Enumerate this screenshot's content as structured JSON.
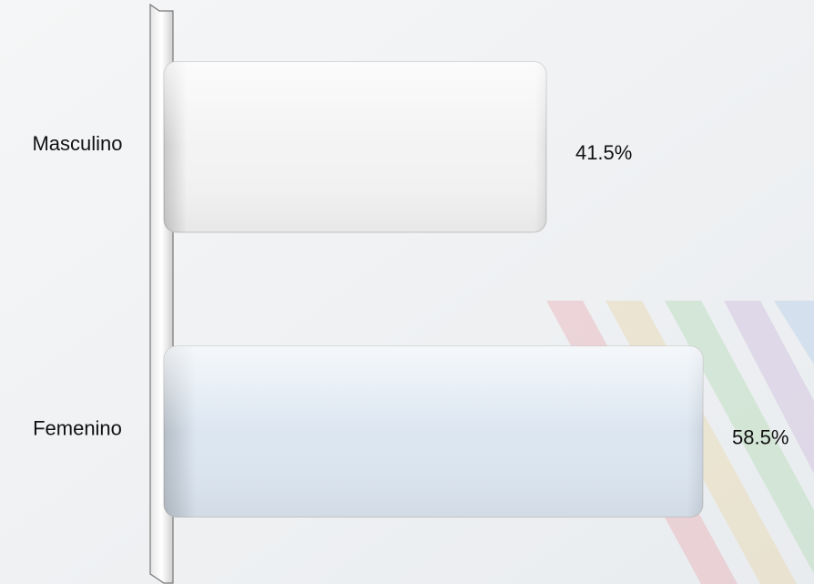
{
  "chart_data": {
    "type": "hbar",
    "categories": [
      "Masculino",
      "Femenino"
    ],
    "values": [
      41.5,
      58.5
    ],
    "value_labels": [
      "41.5%",
      "58.5%"
    ],
    "colors": [
      "#f3f3f3",
      "#dce6f1"
    ]
  }
}
